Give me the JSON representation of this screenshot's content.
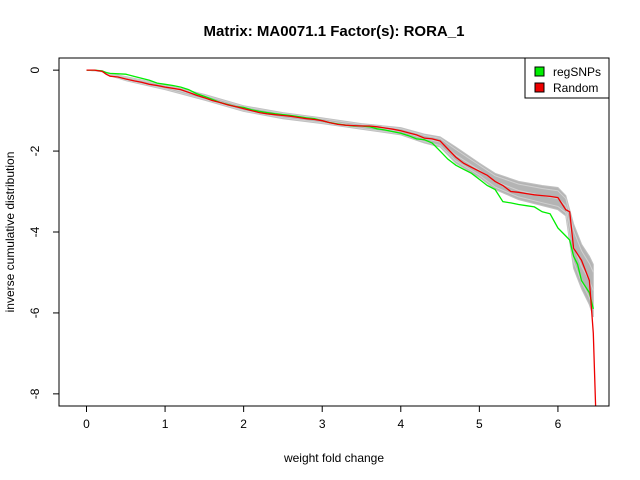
{
  "chart_data": {
    "type": "line",
    "title": "Matrix: MA0071.1 Factor(s): RORA_1",
    "xlabel": "weight fold change",
    "ylabel": "inverse cumulative distribution",
    "xlim": [
      -0.35,
      6.65
    ],
    "ylim": [
      -8.3,
      0.3
    ],
    "x_ticks": [
      0,
      1,
      2,
      3,
      4,
      5,
      6
    ],
    "y_ticks": [
      0,
      -2,
      -4,
      -6,
      -8
    ],
    "x_tick_labels": [
      "0",
      "1",
      "2",
      "3",
      "4",
      "5",
      "6"
    ],
    "y_tick_labels": [
      "0",
      "-2",
      "-4",
      "-6",
      "-8"
    ],
    "legend": {
      "position": "top-right",
      "entries": [
        {
          "name": "regSNPs",
          "color": "#00ee00"
        },
        {
          "name": "Random",
          "color": "#ee0000"
        }
      ]
    },
    "series": [
      {
        "name": "regSNPs",
        "color": "#00ee00",
        "x": [
          0,
          0.1,
          0.2,
          0.25,
          0.3,
          0.5,
          0.6,
          0.7,
          0.8,
          0.9,
          1.0,
          1.1,
          1.2,
          1.3,
          1.4,
          1.5,
          1.6,
          1.7,
          1.8,
          1.9,
          2.0,
          2.1,
          2.2,
          2.3,
          2.4,
          2.5,
          2.6,
          2.7,
          2.8,
          2.9,
          3.0,
          3.1,
          3.2,
          3.3,
          3.4,
          3.5,
          3.6,
          3.7,
          3.8,
          3.9,
          4.0,
          4.1,
          4.2,
          4.3,
          4.4,
          4.5,
          4.6,
          4.7,
          4.8,
          4.9,
          5.0,
          5.1,
          5.2,
          5.3,
          5.4,
          5.5,
          5.6,
          5.7,
          5.8,
          5.9,
          6.0,
          6.1,
          6.15,
          6.2,
          6.25,
          6.3,
          6.4,
          6.45
        ],
        "y": [
          0,
          0,
          -0.02,
          -0.06,
          -0.08,
          -0.1,
          -0.15,
          -0.2,
          -0.25,
          -0.32,
          -0.35,
          -0.38,
          -0.42,
          -0.48,
          -0.58,
          -0.65,
          -0.72,
          -0.8,
          -0.85,
          -0.9,
          -0.92,
          -0.98,
          -1.02,
          -1.05,
          -1.08,
          -1.1,
          -1.12,
          -1.15,
          -1.18,
          -1.2,
          -1.25,
          -1.3,
          -1.33,
          -1.36,
          -1.38,
          -1.38,
          -1.4,
          -1.45,
          -1.48,
          -1.52,
          -1.56,
          -1.62,
          -1.7,
          -1.72,
          -1.8,
          -2.0,
          -2.2,
          -2.35,
          -2.45,
          -2.55,
          -2.7,
          -2.85,
          -2.95,
          -3.25,
          -3.28,
          -3.32,
          -3.35,
          -3.38,
          -3.5,
          -3.55,
          -3.9,
          -4.1,
          -4.2,
          -4.6,
          -4.8,
          -5.2,
          -5.5,
          -5.9
        ]
      },
      {
        "name": "Random",
        "color": "#ee0000",
        "x": [
          0,
          0.1,
          0.2,
          0.25,
          0.3,
          0.4,
          0.5,
          0.6,
          0.7,
          0.8,
          0.9,
          1.0,
          1.1,
          1.2,
          1.3,
          1.4,
          1.5,
          1.6,
          1.7,
          1.8,
          1.9,
          2.0,
          2.1,
          2.2,
          2.3,
          2.4,
          2.5,
          2.6,
          2.7,
          2.8,
          2.9,
          3.0,
          3.1,
          3.2,
          3.3,
          3.4,
          3.5,
          3.6,
          3.7,
          3.8,
          3.9,
          4.0,
          4.1,
          4.2,
          4.3,
          4.4,
          4.5,
          4.6,
          4.7,
          4.8,
          4.9,
          5.0,
          5.1,
          5.2,
          5.3,
          5.4,
          5.5,
          5.6,
          5.7,
          5.8,
          5.9,
          6.0,
          6.1,
          6.15,
          6.2,
          6.3,
          6.4,
          6.45,
          6.48
        ],
        "y": [
          0,
          0,
          -0.03,
          -0.1,
          -0.15,
          -0.17,
          -0.22,
          -0.26,
          -0.3,
          -0.35,
          -0.38,
          -0.42,
          -0.45,
          -0.48,
          -0.55,
          -0.62,
          -0.68,
          -0.75,
          -0.8,
          -0.86,
          -0.9,
          -0.95,
          -1.0,
          -1.05,
          -1.08,
          -1.1,
          -1.12,
          -1.14,
          -1.17,
          -1.2,
          -1.22,
          -1.25,
          -1.3,
          -1.34,
          -1.36,
          -1.37,
          -1.38,
          -1.38,
          -1.4,
          -1.43,
          -1.46,
          -1.5,
          -1.55,
          -1.6,
          -1.68,
          -1.7,
          -1.75,
          -1.95,
          -2.15,
          -2.3,
          -2.4,
          -2.5,
          -2.6,
          -2.75,
          -2.85,
          -3.0,
          -3.02,
          -3.05,
          -3.08,
          -3.1,
          -3.12,
          -3.15,
          -3.45,
          -3.5,
          -4.4,
          -4.7,
          -5.2,
          -6.5,
          -8.3
        ]
      }
    ],
    "envelope": {
      "name": "random-samples",
      "color": "#c0c0c0",
      "x": [
        0,
        0.2,
        0.3,
        0.5,
        1.0,
        1.5,
        2.0,
        2.5,
        3.0,
        3.5,
        4.0,
        4.3,
        4.5,
        4.7,
        5.0,
        5.2,
        5.5,
        5.8,
        6.0,
        6.1,
        6.2,
        6.3,
        6.4,
        6.45
      ],
      "upper": [
        0,
        -0.02,
        -0.08,
        -0.16,
        -0.36,
        -0.6,
        -0.88,
        -1.05,
        -1.18,
        -1.32,
        -1.42,
        -1.58,
        -1.65,
        -1.9,
        -2.3,
        -2.55,
        -2.75,
        -2.85,
        -2.9,
        -3.1,
        -3.8,
        -4.3,
        -4.6,
        -4.8
      ],
      "lower": [
        0,
        -0.04,
        -0.14,
        -0.26,
        -0.48,
        -0.74,
        -1.02,
        -1.2,
        -1.32,
        -1.46,
        -1.6,
        -1.8,
        -1.9,
        -2.3,
        -2.65,
        -2.95,
        -3.2,
        -3.35,
        -3.45,
        -3.6,
        -4.9,
        -5.4,
        -5.8,
        -6.1
      ]
    },
    "grid": false
  }
}
